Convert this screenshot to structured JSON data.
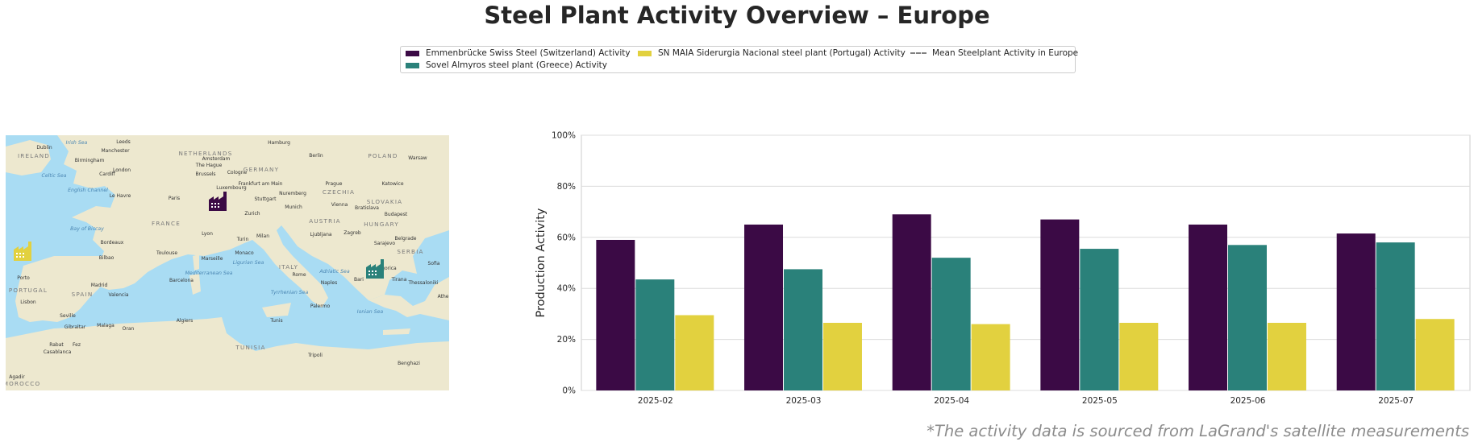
{
  "title": "Steel Plant Activity Overview – Europe",
  "legend": {
    "items": [
      {
        "label": "Emmenbrücke Swiss Steel (Switzerland) Activity",
        "color": "#3b0a45"
      },
      {
        "label": "Sovel Almyros steel plant (Greece) Activity",
        "color": "#2a817a"
      },
      {
        "label": "SN MAIA Siderurgia Nacional steel plant (Portugal) Activity",
        "color": "#e2d13f"
      },
      {
        "label": "Mean Steelplant Activity in Europe",
        "color": "#808080",
        "style": "dashed"
      }
    ]
  },
  "map": {
    "labels": [
      {
        "text": "IRELAND",
        "kind": "country"
      },
      {
        "text": "Dublin",
        "kind": "city"
      },
      {
        "text": "Irish Sea",
        "kind": "sea"
      },
      {
        "text": "Leeds",
        "kind": "city"
      },
      {
        "text": "Manchester",
        "kind": "city"
      },
      {
        "text": "Birmingham",
        "kind": "city"
      },
      {
        "text": "London",
        "kind": "city"
      },
      {
        "text": "Cardiff",
        "kind": "city"
      },
      {
        "text": "Celtic Sea",
        "kind": "sea"
      },
      {
        "text": "English Channel",
        "kind": "sea"
      },
      {
        "text": "NETHERLANDS",
        "kind": "country"
      },
      {
        "text": "Amsterdam",
        "kind": "city"
      },
      {
        "text": "The Hague",
        "kind": "city"
      },
      {
        "text": "Hamburg",
        "kind": "city"
      },
      {
        "text": "Berlin",
        "kind": "city"
      },
      {
        "text": "POLAND",
        "kind": "country"
      },
      {
        "text": "Warsaw",
        "kind": "city"
      },
      {
        "text": "Brussels",
        "kind": "city"
      },
      {
        "text": "Cologne",
        "kind": "city"
      },
      {
        "text": "GERMANY",
        "kind": "country"
      },
      {
        "text": "Frankfurt am Main",
        "kind": "city"
      },
      {
        "text": "Luxembourg",
        "kind": "city"
      },
      {
        "text": "Nuremberg",
        "kind": "city"
      },
      {
        "text": "Prague",
        "kind": "city"
      },
      {
        "text": "CZECHIA",
        "kind": "country"
      },
      {
        "text": "Katowice",
        "kind": "city"
      },
      {
        "text": "Le Havre",
        "kind": "city"
      },
      {
        "text": "Paris",
        "kind": "city"
      },
      {
        "text": "Stuttgart",
        "kind": "city"
      },
      {
        "text": "Munich",
        "kind": "city"
      },
      {
        "text": "Vienna",
        "kind": "city"
      },
      {
        "text": "Bratislava",
        "kind": "city"
      },
      {
        "text": "SLOVAKIA",
        "kind": "country"
      },
      {
        "text": "Budapest",
        "kind": "city"
      },
      {
        "text": "HUNGARY",
        "kind": "country"
      },
      {
        "text": "FRANCE",
        "kind": "country"
      },
      {
        "text": "AUSTRIA",
        "kind": "country"
      },
      {
        "text": "Bay of Biscay",
        "kind": "sea"
      },
      {
        "text": "Lyon",
        "kind": "city"
      },
      {
        "text": "Zurich",
        "kind": "city"
      },
      {
        "text": "Ljubljana",
        "kind": "city"
      },
      {
        "text": "Zagreb",
        "kind": "city"
      },
      {
        "text": "Milan",
        "kind": "city"
      },
      {
        "text": "Turin",
        "kind": "city"
      },
      {
        "text": "Bordeaux",
        "kind": "city"
      },
      {
        "text": "Toulouse",
        "kind": "city"
      },
      {
        "text": "Monaco",
        "kind": "city"
      },
      {
        "text": "Marseille",
        "kind": "city"
      },
      {
        "text": "Ligurian Sea",
        "kind": "sea"
      },
      {
        "text": "ITALY",
        "kind": "country"
      },
      {
        "text": "Rome",
        "kind": "city"
      },
      {
        "text": "Adriatic Sea",
        "kind": "sea"
      },
      {
        "text": "Naples",
        "kind": "city"
      },
      {
        "text": "Bari",
        "kind": "city"
      },
      {
        "text": "Sarajevo",
        "kind": "city"
      },
      {
        "text": "Belgrade",
        "kind": "city"
      },
      {
        "text": "SERBIA",
        "kind": "country"
      },
      {
        "text": "Sofia",
        "kind": "city"
      },
      {
        "text": "Podgorica",
        "kind": "city"
      },
      {
        "text": "Tirana",
        "kind": "city"
      },
      {
        "text": "Thessaloniki",
        "kind": "city"
      },
      {
        "text": "Bilbao",
        "kind": "city"
      },
      {
        "text": "Porto",
        "kind": "city"
      },
      {
        "text": "PORTUGAL",
        "kind": "country"
      },
      {
        "text": "Madrid",
        "kind": "city"
      },
      {
        "text": "SPAIN",
        "kind": "country"
      },
      {
        "text": "Barcelona",
        "kind": "city"
      },
      {
        "text": "Valencia",
        "kind": "city"
      },
      {
        "text": "Lisbon",
        "kind": "city"
      },
      {
        "text": "Mediterranean Sea",
        "kind": "sea"
      },
      {
        "text": "Tyrrhenian Sea",
        "kind": "sea"
      },
      {
        "text": "Palermo",
        "kind": "city"
      },
      {
        "text": "Ionian Sea",
        "kind": "sea"
      },
      {
        "text": "Seville",
        "kind": "city"
      },
      {
        "text": "Malaga",
        "kind": "city"
      },
      {
        "text": "Oran",
        "kind": "city"
      },
      {
        "text": "Algiers",
        "kind": "city"
      },
      {
        "text": "Tunis",
        "kind": "city"
      },
      {
        "text": "Gibraltar",
        "kind": "city"
      },
      {
        "text": "Rabat",
        "kind": "city"
      },
      {
        "text": "Fez",
        "kind": "city"
      },
      {
        "text": "Casablanca",
        "kind": "city"
      },
      {
        "text": "TUNISIA",
        "kind": "country"
      },
      {
        "text": "Tripoli",
        "kind": "city"
      },
      {
        "text": "Benghazi",
        "kind": "city"
      },
      {
        "text": "Agadir",
        "kind": "city"
      },
      {
        "text": "MOROCCO",
        "kind": "country"
      },
      {
        "text": "Athens",
        "kind": "city"
      }
    ],
    "plant_markers": [
      {
        "name": "Emmenbrücke Swiss Steel",
        "color": "#3b0a45",
        "icon": "factory-icon"
      },
      {
        "name": "Sovel Almyros steel plant",
        "color": "#2a817a",
        "icon": "factory-icon"
      },
      {
        "name": "SN MAIA Siderurgia Nacional steel plant",
        "color": "#e2d13f",
        "icon": "factory-icon"
      }
    ]
  },
  "chart_data": {
    "type": "bar",
    "title": "Steel Plant Activity Overview – Europe",
    "xlabel": "",
    "ylabel": "Production Activity",
    "categories": [
      "2025-02",
      "2025-03",
      "2025-04",
      "2025-05",
      "2025-06",
      "2025-07"
    ],
    "series": [
      {
        "name": "Emmenbrücke Swiss Steel (Switzerland) Activity",
        "color": "#3b0a45",
        "values": [
          59,
          65,
          69,
          67,
          65,
          61.5
        ]
      },
      {
        "name": "Sovel Almyros steel plant (Greece) Activity",
        "color": "#2a817a",
        "values": [
          43.5,
          47.5,
          52,
          55.5,
          57,
          58
        ]
      },
      {
        "name": "SN MAIA Siderurgia Nacional steel plant (Portugal) Activity",
        "color": "#e2d13f",
        "values": [
          29.5,
          26.5,
          26,
          26.5,
          26.5,
          28
        ]
      }
    ],
    "mean_series": {
      "name": "Mean Steelplant Activity in Europe",
      "color": "#808080",
      "style": "dashed"
    },
    "ylim": [
      0,
      100
    ],
    "yticks": [
      "0%",
      "20%",
      "40%",
      "60%",
      "80%",
      "100%"
    ],
    "ytick_values": [
      0,
      20,
      40,
      60,
      80,
      100
    ],
    "grid": true,
    "legend_position": "top-center"
  },
  "footnote": "*The activity data is sourced from LaGrand's satellite measurements"
}
